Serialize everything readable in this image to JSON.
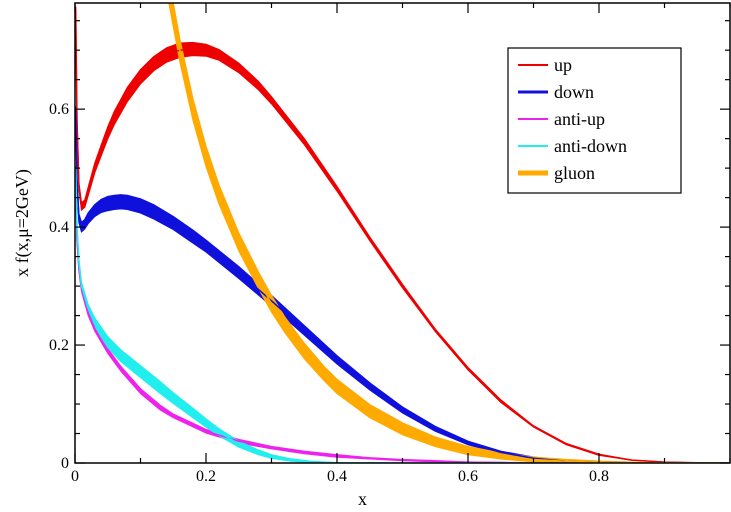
{
  "chart_data": {
    "type": "line",
    "xlabel": "x",
    "ylabel": "x f(x,μ=2GeV)",
    "xlim": [
      0,
      1
    ],
    "ylim": [
      0,
      0.78
    ],
    "xticks": [
      "0",
      "0.2",
      "0.4",
      "0.6",
      "0.8"
    ],
    "xtick_values": [
      0,
      0.2,
      0.4,
      0.6,
      0.8
    ],
    "yticks": [
      "0",
      "0.2",
      "0.4",
      "0.6"
    ],
    "ytick_values": [
      0,
      0.2,
      0.4,
      0.6
    ],
    "grid": false,
    "legend_position": "top-right",
    "series": [
      {
        "name": "up",
        "color": "#ee0000",
        "x": [
          0.001,
          0.003,
          0.006,
          0.01,
          0.015,
          0.02,
          0.03,
          0.04,
          0.05,
          0.06,
          0.08,
          0.1,
          0.12,
          0.14,
          0.16,
          0.18,
          0.2,
          0.22,
          0.25,
          0.28,
          0.3,
          0.35,
          0.4,
          0.45,
          0.5,
          0.55,
          0.6,
          0.65,
          0.7,
          0.75,
          0.8,
          0.85,
          0.9,
          0.95,
          1.0
        ],
        "y": [
          0.77,
          0.58,
          0.47,
          0.435,
          0.44,
          0.46,
          0.5,
          0.53,
          0.56,
          0.585,
          0.625,
          0.655,
          0.677,
          0.692,
          0.7,
          0.702,
          0.7,
          0.692,
          0.67,
          0.64,
          0.615,
          0.545,
          0.465,
          0.38,
          0.3,
          0.225,
          0.16,
          0.105,
          0.062,
          0.032,
          0.014,
          0.005,
          0.0015,
          0.0003,
          0.0
        ],
        "band": [
          0.004,
          0.004,
          0.005,
          0.006,
          0.006,
          0.007,
          0.008,
          0.009,
          0.01,
          0.011,
          0.012,
          0.012,
          0.012,
          0.012,
          0.012,
          0.011,
          0.01,
          0.009,
          0.008,
          0.007,
          0.006,
          0.005,
          0.004,
          0.003,
          0.003,
          0.002,
          0.002,
          0.002,
          0.001,
          0.001,
          0.001,
          0.0,
          0.0,
          0.0,
          0.0
        ]
      },
      {
        "name": "down",
        "color": "#1010dd",
        "x": [
          0.001,
          0.003,
          0.006,
          0.01,
          0.015,
          0.02,
          0.03,
          0.04,
          0.05,
          0.06,
          0.07,
          0.08,
          0.1,
          0.12,
          0.15,
          0.18,
          0.2,
          0.25,
          0.3,
          0.35,
          0.4,
          0.45,
          0.5,
          0.55,
          0.6,
          0.65,
          0.7,
          0.75,
          0.8,
          0.85,
          0.9,
          1.0
        ],
        "y": [
          0.6,
          0.48,
          0.415,
          0.4,
          0.405,
          0.415,
          0.428,
          0.436,
          0.44,
          0.442,
          0.443,
          0.442,
          0.436,
          0.426,
          0.407,
          0.384,
          0.368,
          0.323,
          0.275,
          0.225,
          0.175,
          0.13,
          0.09,
          0.058,
          0.034,
          0.018,
          0.008,
          0.003,
          0.001,
          0.0003,
          0.0001,
          0.0
        ],
        "band": [
          0.005,
          0.006,
          0.007,
          0.008,
          0.008,
          0.009,
          0.01,
          0.011,
          0.012,
          0.012,
          0.012,
          0.012,
          0.012,
          0.012,
          0.011,
          0.011,
          0.01,
          0.01,
          0.009,
          0.008,
          0.007,
          0.006,
          0.005,
          0.004,
          0.003,
          0.002,
          0.002,
          0.001,
          0.001,
          0.0,
          0.0,
          0.0
        ]
      },
      {
        "name": "anti-up",
        "color": "#ee22ee",
        "x": [
          0.001,
          0.003,
          0.006,
          0.01,
          0.02,
          0.03,
          0.05,
          0.07,
          0.1,
          0.13,
          0.15,
          0.2,
          0.25,
          0.3,
          0.35,
          0.4,
          0.45,
          0.5,
          0.55,
          0.6,
          0.65,
          0.7,
          0.8,
          0.9,
          1.0
        ],
        "y": [
          0.48,
          0.38,
          0.33,
          0.295,
          0.255,
          0.228,
          0.19,
          0.16,
          0.122,
          0.094,
          0.08,
          0.054,
          0.037,
          0.026,
          0.018,
          0.012,
          0.008,
          0.005,
          0.003,
          0.0015,
          0.0008,
          0.0003,
          0.0001,
          0.0,
          0.0
        ],
        "band": [
          0.004,
          0.004,
          0.004,
          0.004,
          0.004,
          0.004,
          0.004,
          0.004,
          0.004,
          0.004,
          0.003,
          0.003,
          0.003,
          0.002,
          0.002,
          0.002,
          0.001,
          0.001,
          0.001,
          0.0,
          0.0,
          0.0,
          0.0,
          0.0,
          0.0
        ]
      },
      {
        "name": "anti-down",
        "color": "#22eeee",
        "x": [
          0.001,
          0.003,
          0.006,
          0.01,
          0.02,
          0.03,
          0.05,
          0.07,
          0.1,
          0.13,
          0.15,
          0.18,
          0.2,
          0.22,
          0.25,
          0.28,
          0.3,
          0.33,
          0.36,
          0.4,
          0.45,
          0.5,
          0.6,
          0.8,
          1.0
        ],
        "y": [
          0.5,
          0.4,
          0.34,
          0.3,
          0.262,
          0.238,
          0.205,
          0.182,
          0.155,
          0.128,
          0.11,
          0.085,
          0.068,
          0.052,
          0.032,
          0.018,
          0.011,
          0.005,
          0.002,
          0.0005,
          0.0001,
          0.0,
          0.0,
          0.0,
          0.0
        ],
        "band": [
          0.005,
          0.005,
          0.006,
          0.006,
          0.007,
          0.008,
          0.009,
          0.01,
          0.01,
          0.01,
          0.009,
          0.008,
          0.007,
          0.006,
          0.005,
          0.004,
          0.003,
          0.002,
          0.001,
          0.0,
          0.0,
          0.0,
          0.0,
          0.0,
          0.0
        ]
      },
      {
        "name": "gluon",
        "color": "#ffaa00",
        "x": [
          0.14,
          0.15,
          0.16,
          0.18,
          0.2,
          0.22,
          0.25,
          0.28,
          0.3,
          0.32,
          0.35,
          0.38,
          0.4,
          0.45,
          0.5,
          0.55,
          0.6,
          0.65,
          0.7,
          0.75,
          0.8,
          0.85,
          0.9,
          0.95,
          1.0
        ],
        "y": [
          0.82,
          0.76,
          0.7,
          0.6,
          0.52,
          0.455,
          0.375,
          0.31,
          0.27,
          0.235,
          0.19,
          0.152,
          0.13,
          0.088,
          0.058,
          0.036,
          0.021,
          0.012,
          0.006,
          0.003,
          0.0012,
          0.0004,
          0.0001,
          0.0,
          0.0
        ],
        "band": [
          0.02,
          0.02,
          0.019,
          0.018,
          0.017,
          0.016,
          0.015,
          0.014,
          0.014,
          0.013,
          0.013,
          0.012,
          0.012,
          0.011,
          0.01,
          0.008,
          0.007,
          0.005,
          0.004,
          0.003,
          0.002,
          0.001,
          0.0,
          0.0,
          0.0
        ]
      }
    ]
  }
}
